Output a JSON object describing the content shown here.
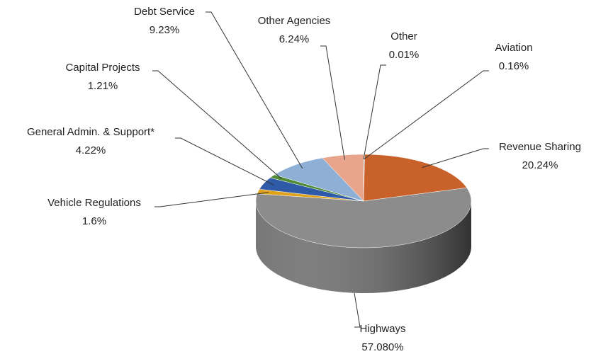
{
  "chart_data": {
    "type": "pie3d",
    "categories": [
      "Other",
      "Aviation",
      "Revenue Sharing",
      "Highways",
      "Vehicle Regulations",
      "General Admin. & Support*",
      "Capital Projects",
      "Debt Service",
      "Other Agencies"
    ],
    "values": [
      0.01,
      0.16,
      20.24,
      57.08,
      1.6,
      4.22,
      1.21,
      9.23,
      6.24
    ],
    "value_labels": [
      "0.01%",
      "0.16%",
      "20.24%",
      "57.080%",
      "1.6%",
      "4.22%",
      "1.21%",
      "9.23%",
      "6.24%"
    ],
    "colors": [
      "#7f7f7f",
      "#a5a5a5",
      "#c8612a",
      "#8c8c8c",
      "#e0a11b",
      "#2f5aa8",
      "#4f8a35",
      "#8fb0d6",
      "#e9a48c"
    ]
  }
}
